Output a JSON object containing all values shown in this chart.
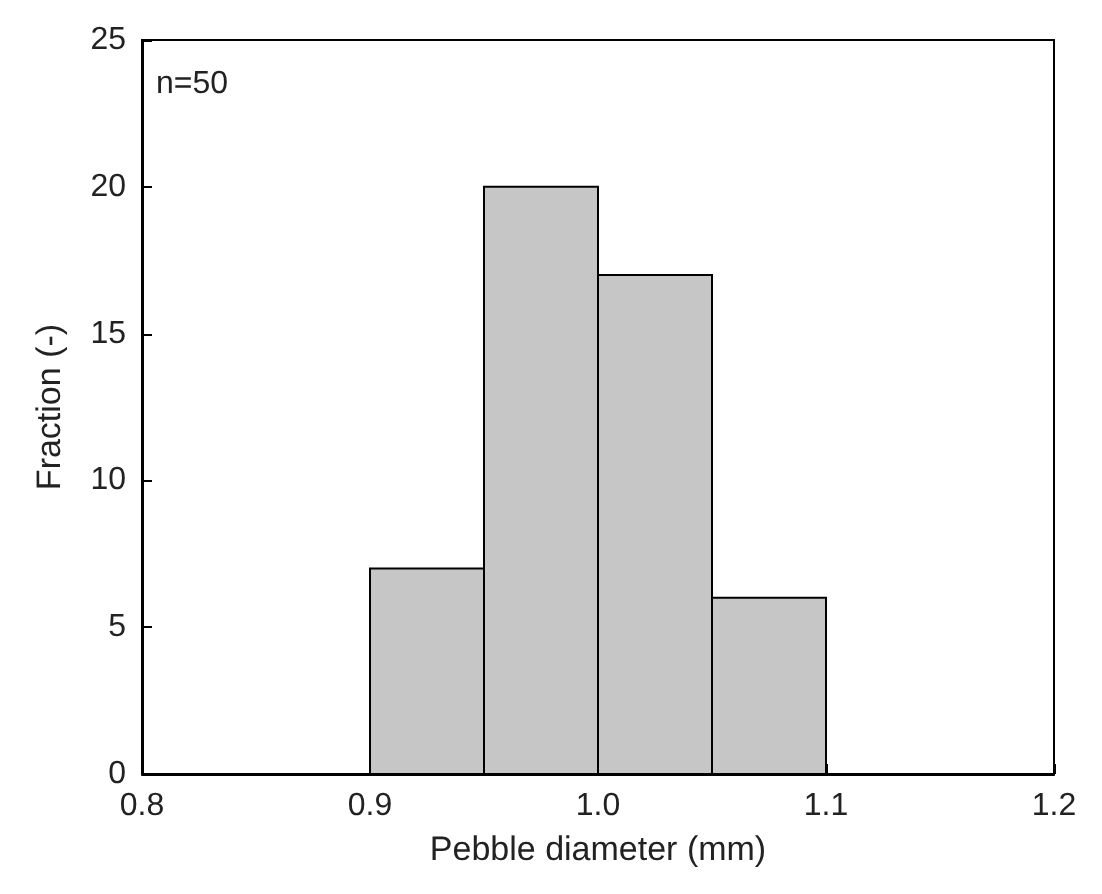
{
  "chart_data": {
    "type": "histogram",
    "xlabel": "Pebble diameter (mm)",
    "ylabel": "Fraction (-)",
    "annotations": [
      "n=50"
    ],
    "bins": [
      0.9,
      0.95,
      1.0,
      1.05,
      1.1
    ],
    "values": [
      7,
      20,
      17,
      6
    ],
    "color": "#c6c6c6",
    "xlim": [
      0.8,
      1.2
    ],
    "xticks": [
      0.8,
      0.9,
      {
        "value": 1,
        "label": "1.0"
      },
      1.1,
      1.2
    ],
    "ylim": [
      0,
      25
    ],
    "yticks": [
      0,
      5,
      10,
      15,
      20,
      25
    ],
    "grid": false
  }
}
